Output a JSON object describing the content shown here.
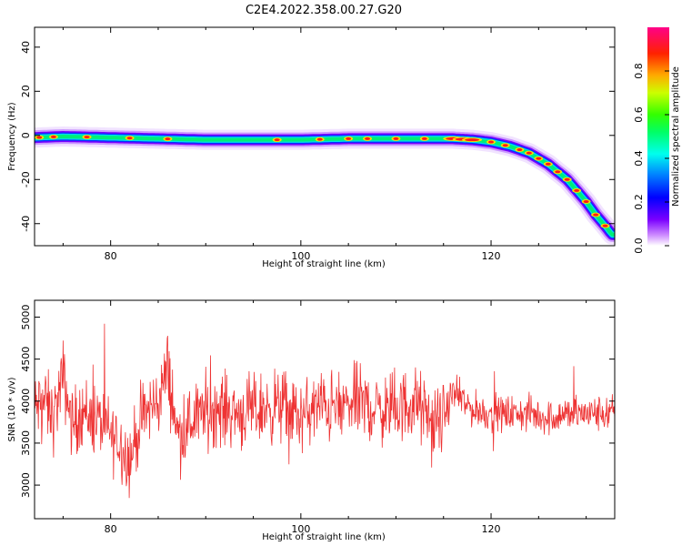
{
  "title": "C2E4.2022.358.00.27.G20",
  "chart_data": [
    {
      "type": "heatmap",
      "xlabel": "Height of straight line (km)",
      "ylabel": "Frequency (Hz)",
      "xlim": [
        72,
        133
      ],
      "ylim": [
        -50,
        49
      ],
      "xticks": [
        80,
        100,
        120
      ],
      "yticks": [
        -40,
        -20,
        0,
        20,
        40
      ],
      "colorbar": {
        "label": "Normalized spectral amplitude",
        "range": [
          0,
          1
        ],
        "ticks": [
          "0.0",
          "0.2",
          "0.4",
          "0.6",
          "0.8"
        ]
      },
      "track": {
        "x": [
          72,
          75,
          80,
          85,
          90,
          95,
          100,
          105,
          110,
          114,
          116,
          118,
          120,
          122,
          124,
          126,
          128,
          130,
          131,
          132,
          132.7
        ],
        "freq": [
          -1,
          -0.5,
          -1,
          -1.5,
          -2,
          -2,
          -2,
          -1.5,
          -1.5,
          -1.5,
          -1.5,
          -2,
          -3,
          -5,
          -8,
          -13,
          -20,
          -30,
          -36,
          -41,
          -45
        ]
      }
    },
    {
      "type": "line",
      "xlabel": "Height of straight line (km)",
      "ylabel": "SNR (10 * v/v)",
      "xlim": [
        72,
        133
      ],
      "ylim": [
        2600,
        5200
      ],
      "xticks": [
        80,
        100,
        120
      ],
      "yticks": [
        3000,
        3500,
        4000,
        4500,
        5000
      ],
      "series": [
        {
          "color": "#ee3333",
          "x": [
            72,
            73,
            74,
            75,
            76,
            77,
            78,
            79,
            80,
            81,
            82,
            83,
            84,
            85,
            86,
            87,
            88,
            89,
            90,
            92,
            94,
            96,
            98,
            100,
            102,
            104,
            106,
            108,
            110,
            112,
            114,
            115,
            116,
            118,
            120,
            122,
            124,
            126,
            128,
            130,
            132,
            133
          ],
          "y": [
            3900,
            4000,
            3800,
            4300,
            3700,
            3900,
            3800,
            3750,
            3600,
            3500,
            3300,
            3700,
            3900,
            4000,
            4400,
            3600,
            3700,
            3800,
            3900,
            3900,
            3850,
            3900,
            3950,
            3800,
            3950,
            3900,
            4000,
            3900,
            3900,
            4000,
            3700,
            3800,
            4100,
            3900,
            3850,
            3850,
            3850,
            3800,
            3850,
            3850,
            3850,
            3850
          ]
        }
      ]
    }
  ]
}
